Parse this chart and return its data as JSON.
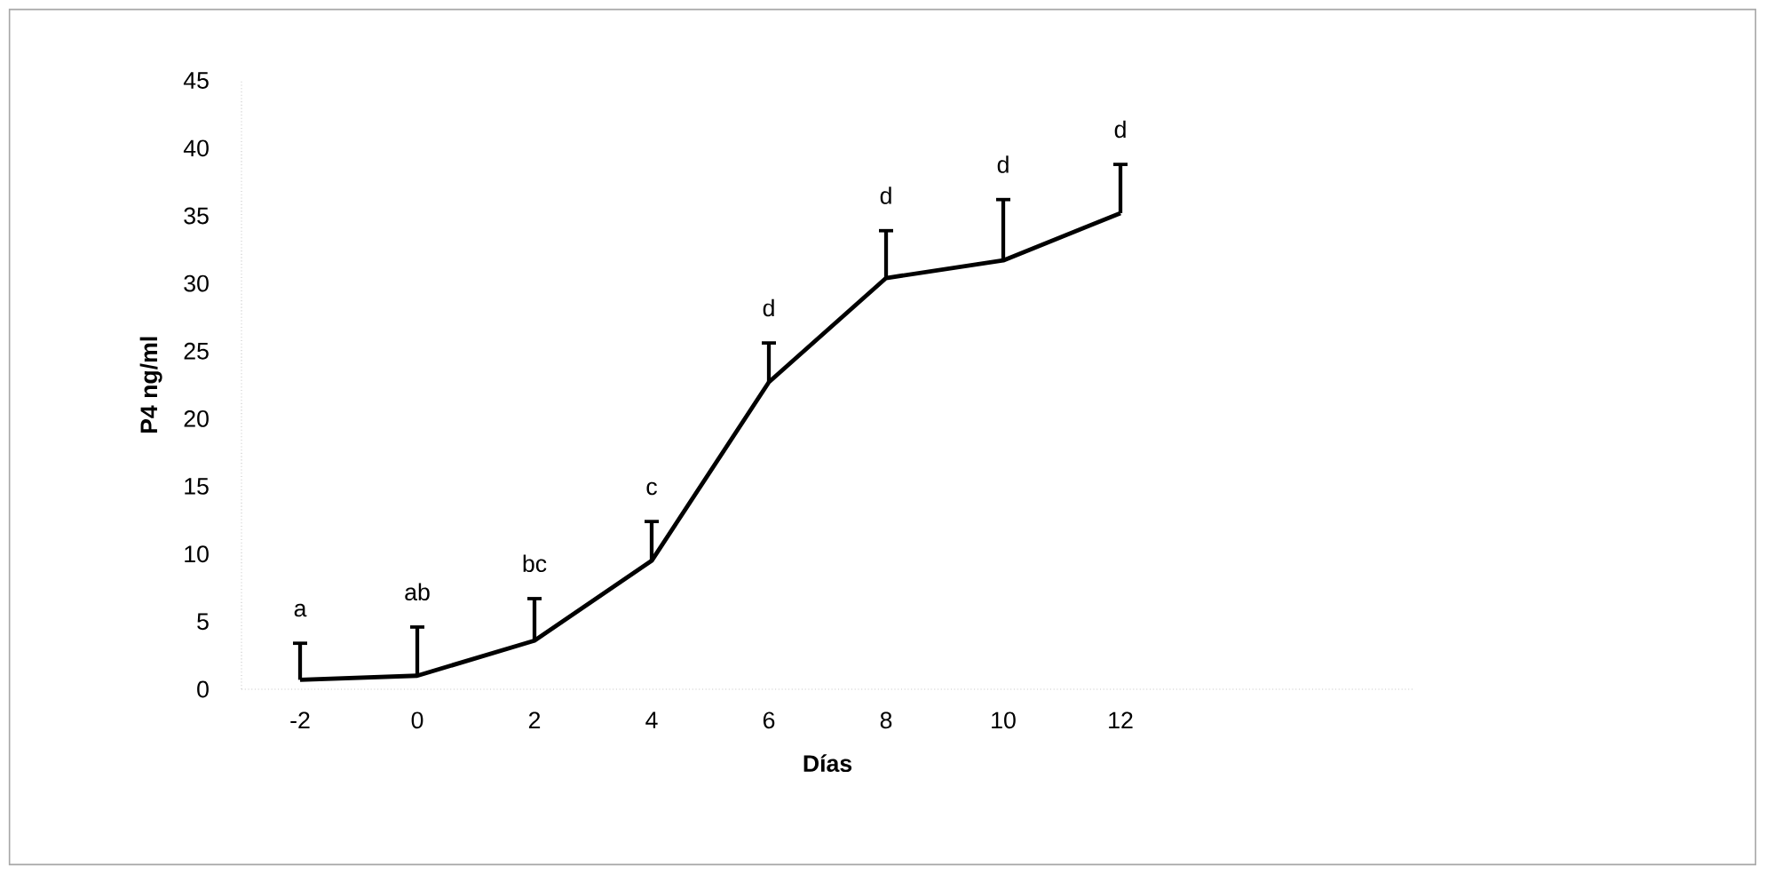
{
  "chart_data": {
    "type": "line",
    "xlabel": "Días",
    "ylabel": "P4 ng/ml",
    "x": [
      -2,
      0,
      2,
      4,
      6,
      8,
      10,
      12
    ],
    "series": [
      {
        "color": "#000000",
        "values": [
          0.7,
          1.0,
          3.6,
          9.5,
          22.7,
          30.4,
          31.7,
          35.2
        ],
        "errors": [
          [
            0.7,
            3.4
          ],
          [
            1.0,
            4.6
          ],
          [
            3.6,
            6.7
          ],
          [
            9.5,
            12.4
          ],
          [
            22.7,
            25.6
          ],
          [
            30.4,
            33.9
          ],
          [
            31.7,
            36.2
          ],
          [
            35.2,
            38.8
          ]
        ]
      }
    ],
    "xlim": [
      -3,
      17
    ],
    "xticks": [
      -2,
      0,
      2,
      4,
      6,
      8,
      10,
      12
    ],
    "ylim": [
      0,
      45
    ],
    "yticks": [
      0,
      5,
      10,
      15,
      20,
      25,
      30,
      35,
      40,
      45
    ],
    "annotations": [
      {
        "text": "a",
        "x": -2,
        "y": 3.4
      },
      {
        "text": "ab",
        "x": 0,
        "y": 4.6
      },
      {
        "text": "bc",
        "x": 2,
        "y": 6.7
      },
      {
        "text": "c",
        "x": 4,
        "y": 12.4
      },
      {
        "text": "d",
        "x": 6,
        "y": 25.6
      },
      {
        "text": "d",
        "x": 8,
        "y": 33.9
      },
      {
        "text": "d",
        "x": 10,
        "y": 36.2
      },
      {
        "text": "d",
        "x": 12,
        "y": 38.8
      }
    ]
  }
}
